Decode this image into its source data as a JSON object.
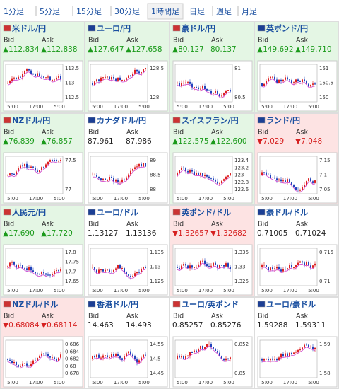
{
  "tabs": [
    "1分足",
    "5分足",
    "15分足",
    "30分足",
    "1時間足",
    "日足",
    "週足",
    "月足"
  ],
  "selected_tab": 4,
  "bid_label": "Bid",
  "ask_label": "Ask",
  "time_labels": [
    "5:00",
    "17:00",
    "5:00"
  ],
  "panels": [
    {
      "name": "米ドル/円",
      "trend": "up",
      "bid": "▲112.834",
      "ask": "▲112.838",
      "yticks": [
        "113.5",
        "113",
        "112.5"
      ]
    },
    {
      "name": "ユーロ/円",
      "trend": "up",
      "bid": "▲127.647",
      "ask": "▲127.658",
      "yticks": [
        "128.5",
        "128"
      ]
    },
    {
      "name": "豪ドル/円",
      "trend": "up",
      "bid": "▲80.127",
      "ask": "80.137",
      "yticks": [
        "81",
        "80.5"
      ]
    },
    {
      "name": "英ポンド/円",
      "trend": "up",
      "bid": "▲149.692",
      "ask": "▲149.710",
      "yticks": [
        "151",
        "150.5",
        "150"
      ]
    },
    {
      "name": "NZドル/円",
      "trend": "up",
      "bid": "▲76.839",
      "ask": "▲76.857",
      "yticks": [
        "77.5",
        "77"
      ]
    },
    {
      "name": "カナダドル/円",
      "trend": "flat",
      "bid": "87.961",
      "ask": "87.986",
      "yticks": [
        "89",
        "88.5",
        "88"
      ]
    },
    {
      "name": "スイスフラン/円",
      "trend": "up",
      "bid": "▲122.575",
      "ask": "▲122.600",
      "yticks": [
        "123.4",
        "123.2",
        "123",
        "122.8",
        "122.6"
      ]
    },
    {
      "name": "ランド/円",
      "trend": "down",
      "bid": "▼7.029",
      "ask": "▼7.048",
      "yticks": [
        "7.15",
        "7.1",
        "7.05"
      ]
    },
    {
      "name": "人民元/円",
      "trend": "up",
      "bid": "▲17.690",
      "ask": "▲17.720",
      "yticks": [
        "17.8",
        "17.75",
        "17.7",
        "17.65"
      ]
    },
    {
      "name": "ユーロ/ドル",
      "trend": "flat",
      "bid": "1.13127",
      "ask": "1.13136",
      "yticks": [
        "1.135",
        "1.13",
        "1.125"
      ]
    },
    {
      "name": "英ポンド/ドル",
      "trend": "down",
      "bid": "▼1.32657",
      "ask": "▼1.32682",
      "yticks": [
        "1.335",
        "1.33",
        "1.325"
      ]
    },
    {
      "name": "豪ドル/ドル",
      "trend": "flat",
      "bid": "0.71005",
      "ask": "0.71024",
      "yticks": [
        "0.715",
        "0.71"
      ]
    },
    {
      "name": "NZドル/ドル",
      "trend": "down",
      "bid": "▼0.68084",
      "ask": "▼0.68114",
      "yticks": [
        "0.686",
        "0.684",
        "0.682",
        "0.68",
        "0.678"
      ]
    },
    {
      "name": "香港ドル/円",
      "trend": "flat",
      "bid": "14.463",
      "ask": "14.493",
      "yticks": [
        "14.55",
        "14.5",
        "14.45"
      ]
    },
    {
      "name": "ユーロ/英ポンド",
      "trend": "flat",
      "bid": "0.85257",
      "ask": "0.85276",
      "yticks": [
        "0.852",
        "0.85"
      ]
    },
    {
      "name": "ユーロ/豪ドル",
      "trend": "flat",
      "bid": "1.59288",
      "ask": "1.59311",
      "yticks": [
        "1.59",
        "1.58"
      ]
    }
  ]
}
